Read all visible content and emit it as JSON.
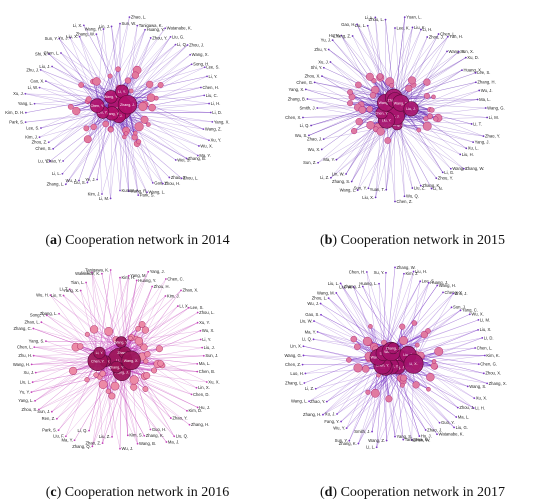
{
  "panels": [
    {
      "id": "a",
      "letter": "a",
      "caption": " Cooperation network in 2014",
      "colors": {
        "edge": "#7a3ec2",
        "hub": "#b0106a",
        "node": "#e27a9c"
      },
      "hub_labels": [
        "Wang, J.",
        "Li, J.",
        "Zhang, Y.",
        "Liu, Y.",
        "Chen, Y.",
        "Wang, Y.",
        "Li, Y.",
        "Zhang, J."
      ],
      "outer_labels": [
        "Sun, W.",
        "Zhao, L.",
        "Tanigawa, K.",
        "Huang, Y.",
        "Zhou, Y.",
        "Watanabe, K.",
        "Liu, G.",
        "Li, Q.",
        "Zhou, J.",
        "Wang, X.",
        "Song, H.",
        "Lee, S.",
        "Li, Y.",
        "Chen, H.",
        "Liu, C.",
        "Li, H.",
        "Li, D.",
        "Yang, X.",
        "Wang, Z.",
        "Xu, Y.",
        "Wu, X.",
        "Ma, Y.",
        "Zhang, B.",
        "Wei, S.",
        "Zhou, L.",
        "Zhao, X.",
        "Zhou, H.",
        "Gao, Y.",
        "Wang, L.",
        "Park, S.",
        "Wang, R.",
        "Kumar, A.",
        "Li, M.",
        "Kim, J.",
        "Ye, J.",
        "Liu, S.",
        "Wu, J.",
        "Zhang, L.",
        "Li, L.",
        "Zhao, Y.",
        "Lu, Y.",
        "Chen, S.",
        "Zhou, Z.",
        "Kim, J.",
        "Lee, S.",
        "Park, S.",
        "Kim, D. H.",
        "Yang, L.",
        "Xu, J.",
        "Li, W.",
        "Cao, X.",
        "Zhu, J.",
        "Liu, J.",
        "Shi, X.",
        "Chen, L.",
        "Sun, Y.",
        "Yu, J.",
        "Liu, X.",
        "Li, X.",
        "Zhang, W.",
        "Wang, H.",
        "Lin, J."
      ]
    },
    {
      "id": "b",
      "letter": "b",
      "caption": " Cooperation network in 2015",
      "colors": {
        "edge": "#6a2fb8",
        "hub": "#a8166e",
        "node": "#de7aa2"
      },
      "hub_labels": [
        "Zhang, Y.",
        "Wang, J.",
        "Li, J.",
        "Liu, Y.",
        "Chen, Y.",
        "Wang, X.",
        "Li, Y.",
        "Zhang, J.",
        "Wang, Y.",
        "Liu, J."
      ],
      "outer_labels": [
        "Lee, K.",
        "Yuan, L.",
        "Liu, K.",
        "Li, H.",
        "Zhou, J.",
        "Chen, L.",
        "Yan, H.",
        "Wang, Y.",
        "Sun, X.",
        "Xu, D.",
        "Huang, X.",
        "Lee, S.",
        "Zhang, H.",
        "Wu, J.",
        "Ma, L.",
        "Wang, G.",
        "Li, M.",
        "Li, T.",
        "Zhao, Y.",
        "Yang, J.",
        "Xu, L.",
        "Liu, H.",
        "Zhang, W.",
        "Wang, L.",
        "Li, G.",
        "Zhou, Y.",
        "Li, N.",
        "Zhang, K.",
        "Liu, Z.",
        "Wu, Q.",
        "Chen, Z.",
        "Yuan, T.",
        "Liu, X.",
        "Sun, Y.",
        "Wang, L.",
        "Zhang, S.",
        "Lin, W.",
        "Li, Z.",
        "Ma, Y.",
        "Sun, Z.",
        "Wu, X.",
        "Zhao, J.",
        "Wu, S.",
        "Li, Q.",
        "Chen, X.",
        "Smith, J.",
        "Zhang, B.",
        "Yang, X.",
        "Chen, G.",
        "Zhou, X.",
        "Shi, Y.",
        "Xu, J.",
        "Zhu, Y.",
        "Yu, J.",
        "Hu, Y.",
        "Zhang, Z.",
        "Gao, H.",
        "Liu, L.",
        "Li, L.",
        "Zhou, L."
      ]
    },
    {
      "id": "c",
      "letter": "c",
      "caption": " Cooperation network in 2016",
      "colors": {
        "edge": "#c23fb8",
        "hub": "#9b1458",
        "node": "#ec8aa6"
      },
      "hub_labels": [
        "Li, J.",
        "Wang, J.",
        "Zhang, Y.",
        "Liu, Y.",
        "Chen, Y.",
        "Li, Y.",
        "Wang, Y.",
        "Zhang, J.",
        "Wang, X."
      ],
      "outer_labels": [
        "Kim, H.",
        "Yang, M.",
        "Huang, Y.",
        "Yang, J.",
        "Zhou, H.",
        "Chen, C.",
        "Kim, J.",
        "Zhao, X.",
        "Li, X.",
        "Lee, S.",
        "Zhou, L.",
        "Xu, Y.",
        "Wu, X.",
        "Li, Y.",
        "Liu, J.",
        "Sun, J.",
        "Ma, L.",
        "Chen, B.",
        "Xu, X.",
        "Lin, X.",
        "Chen, D.",
        "Hu, J.",
        "Kim, D.",
        "Zhang, H.",
        "Zhao, Y.",
        "Liu, Q.",
        "Ma, J.",
        "Guo, H.",
        "Zhang, K.",
        "Wang, B.",
        "Kim, S.",
        "Wu, J.",
        "Liu, Z.",
        "Zhao, Z.",
        "Zhang, Q.",
        "Li, Q.",
        "Ma, Y.",
        "Liu, F.",
        "Park, S.",
        "Ren, Z.",
        "Sun, J.",
        "Zhou, S.",
        "Yang, L.",
        "Yu, Y.",
        "Liu, L.",
        "Xu, J.",
        "Wang, H.",
        "Zhu, H.",
        "Chen, L.",
        "Yang, S.",
        "Zhang, C.",
        "Zhao, L.",
        "Song, Y.",
        "Zhang, L.",
        "Wu, H.",
        "Lin, Y.",
        "Li, T.",
        "Yang, X.",
        "Tian, L.",
        "Li, L.",
        "Watanabe, K.",
        "Tanigawa, K."
      ]
    },
    {
      "id": "d",
      "letter": "d",
      "caption": " Cooperation network in 2017",
      "colors": {
        "edge": "#7a34c6",
        "hub": "#a4126a",
        "node": "#e07aa0"
      },
      "hub_labels": [
        "Li, J.",
        "Wang, J.",
        "Zhang, Y.",
        "Liu, Y.",
        "Chen, Y.",
        "Wang, X.",
        "Li, Y.",
        "Wang, Y.",
        "Zhang, J.",
        "Liu, J.",
        "Li, X."
      ],
      "outer_labels": [
        "Zhang, W.",
        "Kim, J.",
        "Liu, H.",
        "Lee, S.",
        "Huang, J.",
        "Wang, H.",
        "Cheng, Y.",
        "Zhu, J.",
        "Sun, J.",
        "Yang, C.",
        "Wu, X.",
        "Li, M.",
        "Liu, X.",
        "Li, D.",
        "Chen, L.",
        "Kim, K.",
        "Chen, G.",
        "Zhou, X.",
        "Zhang, X.",
        "Wang, S.",
        "Xu, X.",
        "Li, H.",
        "Zhou, J.",
        "Ma, L.",
        "Liu, G.",
        "Guo, Y.",
        "Watanabe, K.",
        "Zhao, J.",
        "Hu, J.",
        "Chen, W.",
        "Tanigawa, K.",
        "Yang, S.",
        "Wang, Z.",
        "Li, L.",
        "Smith, J.",
        "Zhang, K.",
        "Sun, Y.",
        "Wu, Y.",
        "Fang, Y.",
        "Xu, J.",
        "Zhang, H.",
        "Zhao, Y.",
        "Wang, L.",
        "Li, Z.",
        "Zhang, L.",
        "Luo, H.",
        "Chen, Z.",
        "Wang, G.",
        "Lin, X.",
        "Li, Q.",
        "Ma, Y.",
        "Liu, W.",
        "Gao, S.",
        "Wu, J.",
        "Zhou, L.",
        "Wang, M.",
        "Liu, L.",
        "Liu, W.",
        "Zhang, J.",
        "Chen, H.",
        "Huang, L.",
        "Xu, Y."
      ]
    }
  ]
}
